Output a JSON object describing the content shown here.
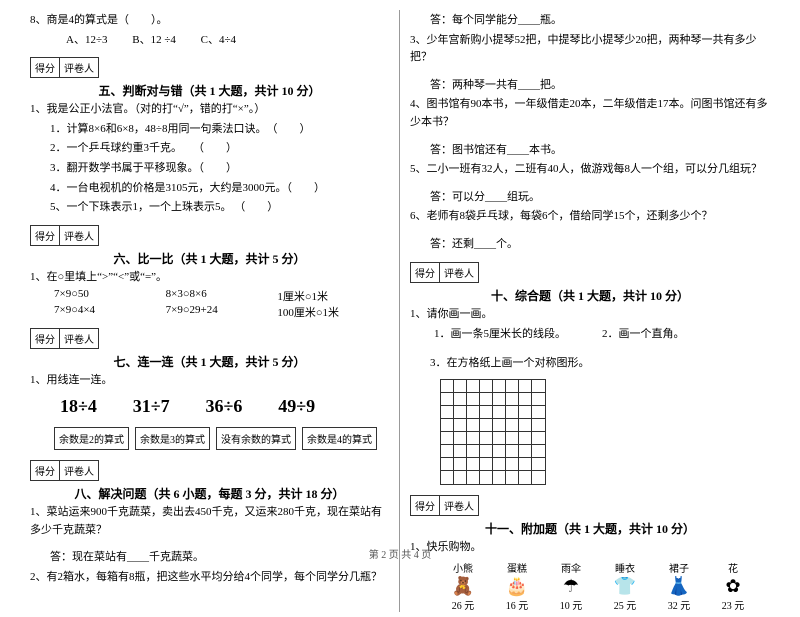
{
  "q8": {
    "stem": "8、商是4的算式是（　　）。",
    "optA": "A、12÷3",
    "optB": "B、12 ÷4",
    "optC": "C、4÷4"
  },
  "scoreLabels": {
    "score": "得分",
    "grader": "评卷人"
  },
  "sec5": {
    "title": "五、判断对与错（共 1 大题，共计 10 分）",
    "intro": "1、我是公正小法官。（对的打“√”，错的打“×”。）",
    "i1": "1．计算8×6和6×8，48÷8用同一句乘法口诀。　（　　）",
    "i2": "2．一个乒乓球约重3千克。　　（　　）",
    "i3": "3．翻开数学书属于平移现象。（　　）",
    "i4": "4．一台电视机的价格是3105元，大约是3000元。（　　）",
    "i5": "5、一个下珠表示1，一个上珠表示5。 （　　）"
  },
  "sec6": {
    "title": "六、比一比（共 1 大题，共计 5 分）",
    "intro": "1、在○里填上“>”“<”或“=”。",
    "r1a": "7×9○50",
    "r1b": "8×3○8×6",
    "r1c": "1厘米○1米",
    "r2a": "7×9○4×4",
    "r2b": "7×9○29+24",
    "r2c": "100厘米○1米"
  },
  "sec7": {
    "title": "七、连一连（共 1 大题，共计 5 分）",
    "intro": "1、用线连一连。",
    "n1": "18÷4",
    "n2": "31÷7",
    "n3": "36÷6",
    "n4": "49÷9",
    "b1": "余数是2的算式",
    "b2": "余数是3的算式",
    "b3": "没有余数的算式",
    "b4": "余数是4的算式"
  },
  "sec8": {
    "title": "八、解决问题（共 6 小题，每题 3 分，共计 18 分）",
    "q1": "1、菜站运来900千克蔬菜，卖出去450千克，又运来280千克，现在菜站有多少千克蔬菜？",
    "a1": "答：现在菜站有____千克蔬菜。",
    "q2": "2、有2箱水，每箱有8瓶，把这些水平均分给4个同学，每个同学分几瓶？",
    "a2": "答：每个同学能分____瓶。",
    "q3": "3、少年宫新购小提琴52把，中提琴比小提琴少20把，两种琴一共有多少把？",
    "a3": "答：两种琴一共有____把。",
    "q4": "4、图书馆有90本书，一年级借走20本，二年级借走17本。问图书馆还有多少本书？",
    "a4": "答：图书馆还有____本书。",
    "q5": "5、二小一班有32人，二班有40人，做游戏每8人一个组，可以分几组玩？",
    "a5": "答：可以分____组玩。",
    "q6": "6、老师有8袋乒乓球，每袋6个，借给同学15个，还剩多少个？",
    "a6": "答：还剩____个。"
  },
  "sec10": {
    "title": "十、综合题（共 1 大题，共计 10 分）",
    "intro": "1、请你画一画。",
    "p1": "1．画一条5厘米长的线段。",
    "p2": "2．画一个直角。",
    "p3": "3．在方格纸上画一个对称图形。"
  },
  "sec11": {
    "title": "十一、附加题（共 1 大题，共计 10 分）",
    "intro": "1、快乐购物。",
    "items": [
      {
        "name": "小熊",
        "icon": "🧸",
        "price": "26 元"
      },
      {
        "name": "蛋糕",
        "icon": "🎂",
        "price": "16 元"
      },
      {
        "name": "雨伞",
        "icon": "☂",
        "price": "10 元"
      },
      {
        "name": "睡衣",
        "icon": "👕",
        "price": "25 元"
      },
      {
        "name": "裙子",
        "icon": "👗",
        "price": "32 元"
      },
      {
        "name": "花",
        "icon": "✿",
        "price": "23 元"
      }
    ]
  },
  "footer": "第 2 页 共 4 页"
}
